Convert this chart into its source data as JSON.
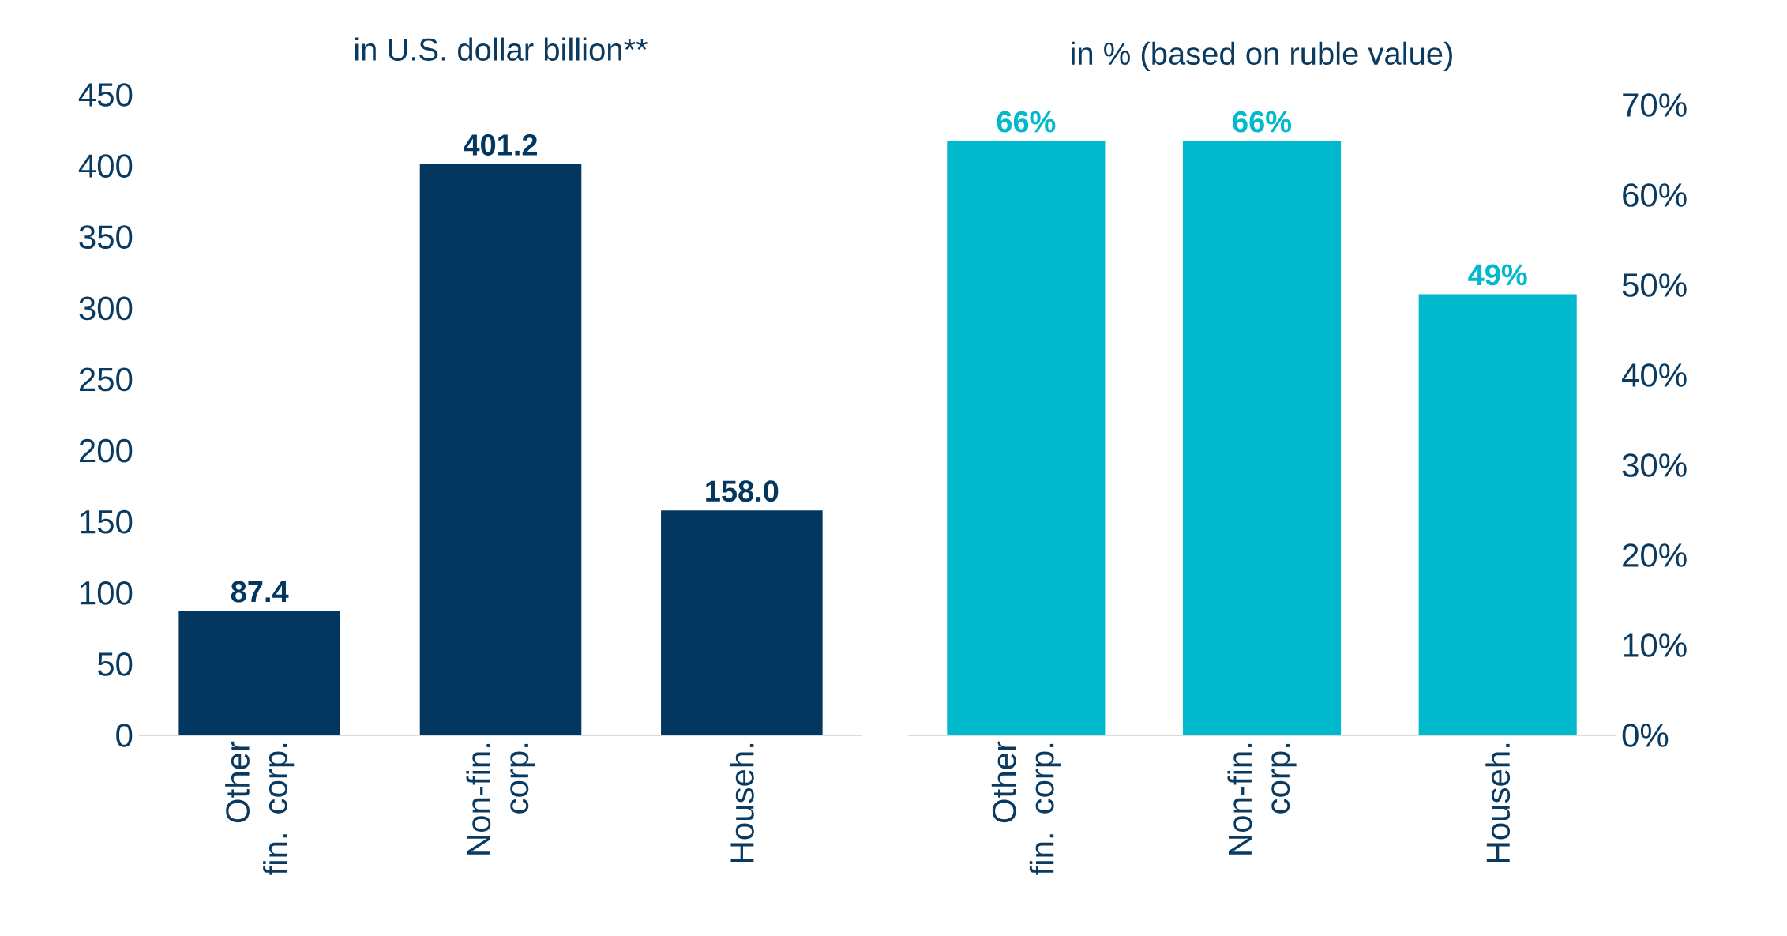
{
  "chart_data": [
    {
      "type": "bar",
      "title": "in U.S. dollar billion**",
      "categories": [
        "Other fin. corp.",
        "Non-fin. corp.",
        "Househ."
      ],
      "values": [
        87.4,
        401.2,
        158.0
      ],
      "value_labels": [
        "87.4",
        "401.2",
        "158.0"
      ],
      "color": "#03375f",
      "ylim": [
        0,
        450
      ],
      "yticks": [
        0,
        50,
        100,
        150,
        200,
        250,
        300,
        350,
        400,
        450
      ]
    },
    {
      "type": "bar",
      "title": "in % (based on ruble value)",
      "categories": [
        "Other fin. corp.",
        "Non-fin. corp.",
        "Househ."
      ],
      "series": [
        {
          "color": "#00b9cd",
          "axis": "y2",
          "values": [
            66,
            66,
            49
          ],
          "value_labels": [
            "66%",
            "66%",
            "49%"
          ]
        }
      ],
      "y2lim": [
        0,
        70
      ],
      "y2ticks": [
        {
          "value": 0,
          "label": "0%"
        },
        {
          "value": 10,
          "label": "10%"
        },
        {
          "value": 20,
          "label": "20%"
        },
        {
          "value": 30,
          "label": "30%"
        },
        {
          "value": 40,
          "label": "40%"
        },
        {
          "value": 50,
          "label": "50%"
        },
        {
          "value": 60,
          "label": "60%"
        },
        {
          "value": 70,
          "label": "70%"
        }
      ]
    }
  ]
}
